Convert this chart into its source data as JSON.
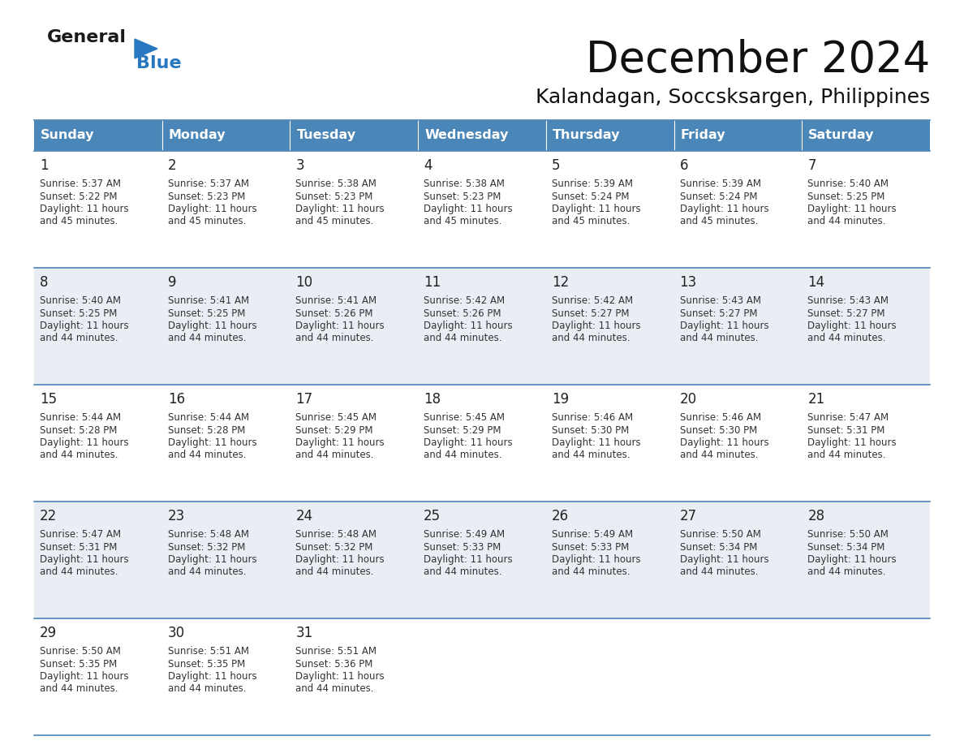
{
  "title": "December 2024",
  "subtitle": "Kalandagan, Soccsksargen, Philippines",
  "header_color": "#4a86b8",
  "header_text_color": "#FFFFFF",
  "days_of_week": [
    "Sunday",
    "Monday",
    "Tuesday",
    "Wednesday",
    "Thursday",
    "Friday",
    "Saturday"
  ],
  "background_color": "#FFFFFF",
  "cell_bg_even": "#FFFFFF",
  "cell_bg_odd": "#e8eef4",
  "border_color": "#4a86b8",
  "day_num_color": "#222222",
  "text_color": "#333333",
  "logo_general_color": "#1A1A1A",
  "logo_blue_color": "#2878c0",
  "calendar_data": [
    [
      {
        "day": 1,
        "sunrise": "5:37 AM",
        "sunset": "5:22 PM",
        "daylight_hrs": 11,
        "daylight_min": 45
      },
      {
        "day": 2,
        "sunrise": "5:37 AM",
        "sunset": "5:23 PM",
        "daylight_hrs": 11,
        "daylight_min": 45
      },
      {
        "day": 3,
        "sunrise": "5:38 AM",
        "sunset": "5:23 PM",
        "daylight_hrs": 11,
        "daylight_min": 45
      },
      {
        "day": 4,
        "sunrise": "5:38 AM",
        "sunset": "5:23 PM",
        "daylight_hrs": 11,
        "daylight_min": 45
      },
      {
        "day": 5,
        "sunrise": "5:39 AM",
        "sunset": "5:24 PM",
        "daylight_hrs": 11,
        "daylight_min": 45
      },
      {
        "day": 6,
        "sunrise": "5:39 AM",
        "sunset": "5:24 PM",
        "daylight_hrs": 11,
        "daylight_min": 45
      },
      {
        "day": 7,
        "sunrise": "5:40 AM",
        "sunset": "5:25 PM",
        "daylight_hrs": 11,
        "daylight_min": 44
      }
    ],
    [
      {
        "day": 8,
        "sunrise": "5:40 AM",
        "sunset": "5:25 PM",
        "daylight_hrs": 11,
        "daylight_min": 44
      },
      {
        "day": 9,
        "sunrise": "5:41 AM",
        "sunset": "5:25 PM",
        "daylight_hrs": 11,
        "daylight_min": 44
      },
      {
        "day": 10,
        "sunrise": "5:41 AM",
        "sunset": "5:26 PM",
        "daylight_hrs": 11,
        "daylight_min": 44
      },
      {
        "day": 11,
        "sunrise": "5:42 AM",
        "sunset": "5:26 PM",
        "daylight_hrs": 11,
        "daylight_min": 44
      },
      {
        "day": 12,
        "sunrise": "5:42 AM",
        "sunset": "5:27 PM",
        "daylight_hrs": 11,
        "daylight_min": 44
      },
      {
        "day": 13,
        "sunrise": "5:43 AM",
        "sunset": "5:27 PM",
        "daylight_hrs": 11,
        "daylight_min": 44
      },
      {
        "day": 14,
        "sunrise": "5:43 AM",
        "sunset": "5:27 PM",
        "daylight_hrs": 11,
        "daylight_min": 44
      }
    ],
    [
      {
        "day": 15,
        "sunrise": "5:44 AM",
        "sunset": "5:28 PM",
        "daylight_hrs": 11,
        "daylight_min": 44
      },
      {
        "day": 16,
        "sunrise": "5:44 AM",
        "sunset": "5:28 PM",
        "daylight_hrs": 11,
        "daylight_min": 44
      },
      {
        "day": 17,
        "sunrise": "5:45 AM",
        "sunset": "5:29 PM",
        "daylight_hrs": 11,
        "daylight_min": 44
      },
      {
        "day": 18,
        "sunrise": "5:45 AM",
        "sunset": "5:29 PM",
        "daylight_hrs": 11,
        "daylight_min": 44
      },
      {
        "day": 19,
        "sunrise": "5:46 AM",
        "sunset": "5:30 PM",
        "daylight_hrs": 11,
        "daylight_min": 44
      },
      {
        "day": 20,
        "sunrise": "5:46 AM",
        "sunset": "5:30 PM",
        "daylight_hrs": 11,
        "daylight_min": 44
      },
      {
        "day": 21,
        "sunrise": "5:47 AM",
        "sunset": "5:31 PM",
        "daylight_hrs": 11,
        "daylight_min": 44
      }
    ],
    [
      {
        "day": 22,
        "sunrise": "5:47 AM",
        "sunset": "5:31 PM",
        "daylight_hrs": 11,
        "daylight_min": 44
      },
      {
        "day": 23,
        "sunrise": "5:48 AM",
        "sunset": "5:32 PM",
        "daylight_hrs": 11,
        "daylight_min": 44
      },
      {
        "day": 24,
        "sunrise": "5:48 AM",
        "sunset": "5:32 PM",
        "daylight_hrs": 11,
        "daylight_min": 44
      },
      {
        "day": 25,
        "sunrise": "5:49 AM",
        "sunset": "5:33 PM",
        "daylight_hrs": 11,
        "daylight_min": 44
      },
      {
        "day": 26,
        "sunrise": "5:49 AM",
        "sunset": "5:33 PM",
        "daylight_hrs": 11,
        "daylight_min": 44
      },
      {
        "day": 27,
        "sunrise": "5:50 AM",
        "sunset": "5:34 PM",
        "daylight_hrs": 11,
        "daylight_min": 44
      },
      {
        "day": 28,
        "sunrise": "5:50 AM",
        "sunset": "5:34 PM",
        "daylight_hrs": 11,
        "daylight_min": 44
      }
    ],
    [
      {
        "day": 29,
        "sunrise": "5:50 AM",
        "sunset": "5:35 PM",
        "daylight_hrs": 11,
        "daylight_min": 44
      },
      {
        "day": 30,
        "sunrise": "5:51 AM",
        "sunset": "5:35 PM",
        "daylight_hrs": 11,
        "daylight_min": 44
      },
      {
        "day": 31,
        "sunrise": "5:51 AM",
        "sunset": "5:36 PM",
        "daylight_hrs": 11,
        "daylight_min": 44
      },
      null,
      null,
      null,
      null
    ]
  ],
  "fig_width": 11.88,
  "fig_height": 9.18,
  "dpi": 100
}
